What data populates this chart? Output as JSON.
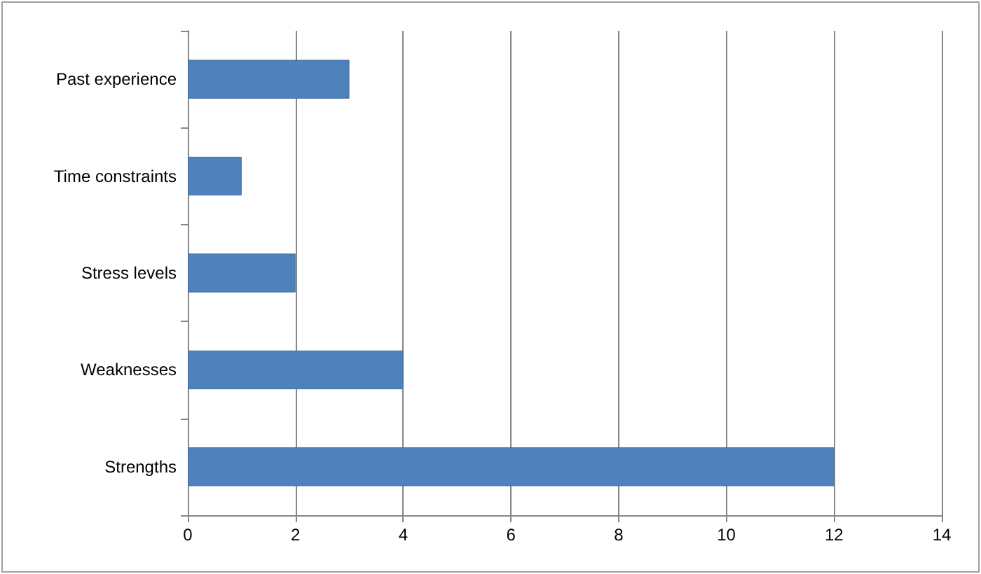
{
  "chart_data": {
    "type": "bar",
    "orientation": "horizontal",
    "categories": [
      "Past experience",
      "Time constraints",
      "Stress levels",
      "Weaknesses",
      "Strengths"
    ],
    "values": [
      3,
      1,
      2,
      4,
      12
    ],
    "color": "#4f81bd",
    "xlim": [
      0,
      14
    ],
    "xticks": [
      0,
      2,
      4,
      6,
      8,
      10,
      12,
      14
    ],
    "grid": "x"
  }
}
